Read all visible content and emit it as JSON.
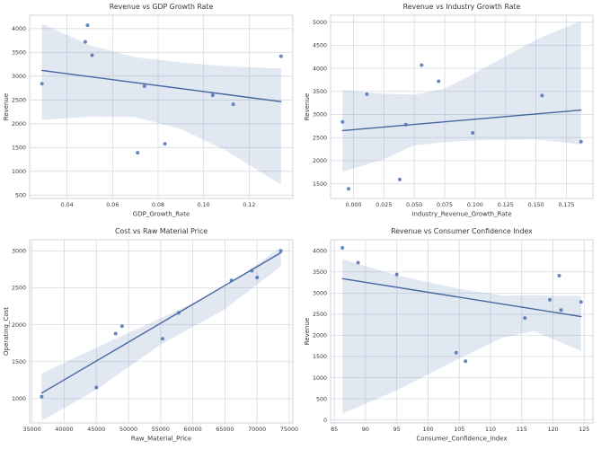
{
  "figure": {
    "background": "#ffffff"
  },
  "style": {
    "point_color": "#4c72b0",
    "point_radius": 2,
    "point_opacity": 0.85,
    "line_color": "#44679f",
    "line_width": 1.4,
    "band_color": "rgba(76,114,176,0.16)",
    "grid_color": "#d9dbe3",
    "spine_color": "#cbcfd8",
    "text_color": "#363636",
    "tick_font_size": 6.3,
    "label_font_size": 7,
    "title_font_size": 7.8
  },
  "chart_data": [
    {
      "type": "scatter",
      "title": "Revenue vs GDP Growth Rate",
      "xlabel": "GDP_Growth_Rate",
      "ylabel": "Revenue",
      "xlim": [
        0.0236,
        0.1392
      ],
      "ylim": [
        430,
        4280
      ],
      "xticks": [
        0.04,
        0.06,
        0.08,
        0.1,
        0.12
      ],
      "xtick_labels": [
        "0.04",
        "0.06",
        "0.08",
        "0.10",
        "0.12"
      ],
      "yticks": [
        500,
        1000,
        1500,
        2000,
        2500,
        3000,
        3500,
        4000
      ],
      "ytick_labels": [
        "500",
        "1000",
        "1500",
        "2000",
        "2500",
        "3000",
        "3500",
        "4000"
      ],
      "grid": true,
      "points": [
        [
          0.029,
          2840
        ],
        [
          0.048,
          3720
        ],
        [
          0.049,
          4070
        ],
        [
          0.051,
          3440
        ],
        [
          0.071,
          1390
        ],
        [
          0.074,
          2790
        ],
        [
          0.083,
          1580
        ],
        [
          0.104,
          2600
        ],
        [
          0.113,
          2410
        ],
        [
          0.134,
          3420
        ]
      ],
      "regression_line": {
        "x": [
          0.029,
          0.134
        ],
        "y": [
          3120,
          2465
        ]
      },
      "confidence_band": {
        "x": [
          0.029,
          0.05,
          0.07,
          0.09,
          0.11,
          0.134
        ],
        "upper": [
          4100,
          3650,
          3400,
          3290,
          3210,
          3160
        ],
        "lower": [
          2080,
          2150,
          2140,
          1890,
          1430,
          720
        ]
      }
    },
    {
      "type": "scatter",
      "title": "Revenue vs Industry Growth Rate",
      "xlabel": "Industry_Revenue_Growth_Rate",
      "ylabel": "Revenue",
      "xlim": [
        -0.0188,
        0.1968
      ],
      "ylim": [
        1180,
        5150
      ],
      "xticks": [
        0.0,
        0.025,
        0.05,
        0.075,
        0.1,
        0.125,
        0.15,
        0.175
      ],
      "xtick_labels": [
        "0.000",
        "0.025",
        "0.050",
        "0.075",
        "0.100",
        "0.125",
        "0.150",
        "0.175"
      ],
      "yticks": [
        1500,
        2000,
        2500,
        3000,
        3500,
        4000,
        4500,
        5000
      ],
      "ytick_labels": [
        "1500",
        "2000",
        "2500",
        "3000",
        "3500",
        "4000",
        "4500",
        "5000"
      ],
      "grid": true,
      "points": [
        [
          -0.009,
          2840
        ],
        [
          -0.004,
          1390
        ],
        [
          0.011,
          3440
        ],
        [
          0.038,
          1590
        ],
        [
          0.043,
          2780
        ],
        [
          0.056,
          4070
        ],
        [
          0.07,
          3720
        ],
        [
          0.098,
          2600
        ],
        [
          0.155,
          3410
        ],
        [
          0.187,
          2410
        ]
      ],
      "regression_line": {
        "x": [
          -0.009,
          0.187
        ],
        "y": [
          2650,
          3095
        ]
      },
      "confidence_band": {
        "x": [
          -0.009,
          0.025,
          0.05,
          0.075,
          0.1,
          0.15,
          0.187
        ],
        "upper": [
          3530,
          3450,
          3430,
          3560,
          3900,
          4620,
          5030
        ],
        "lower": [
          1760,
          2030,
          2330,
          2400,
          2440,
          2460,
          2350
        ]
      }
    },
    {
      "type": "scatter",
      "title": "Cost vs Raw Material Price",
      "xlabel": "Raw_Material_Price",
      "ylabel": "Operating_Cost",
      "xlim": [
        34640,
        75560
      ],
      "ylim": [
        670,
        3150
      ],
      "xticks": [
        35000,
        40000,
        45000,
        50000,
        55000,
        60000,
        65000,
        70000,
        75000
      ],
      "xtick_labels": [
        "35000",
        "40000",
        "45000",
        "50000",
        "55000",
        "60000",
        "65000",
        "70000",
        "75000"
      ],
      "yticks": [
        1000,
        1500,
        2000,
        2500,
        3000
      ],
      "ytick_labels": [
        "1000",
        "1500",
        "2000",
        "2500",
        "3000"
      ],
      "grid": true,
      "points": [
        [
          36500,
          1025
        ],
        [
          45000,
          1150
        ],
        [
          48000,
          1880
        ],
        [
          49000,
          1980
        ],
        [
          55300,
          1810
        ],
        [
          57800,
          2160
        ],
        [
          66000,
          2600
        ],
        [
          69200,
          2730
        ],
        [
          70000,
          2640
        ],
        [
          73700,
          3000
        ]
      ],
      "regression_line": {
        "x": [
          36500,
          73700
        ],
        "y": [
          1075,
          2975
        ]
      },
      "confidence_band": {
        "x": [
          36500,
          45000,
          55000,
          60000,
          65000,
          73700
        ],
        "upper": [
          1340,
          1690,
          2090,
          2290,
          2510,
          3050
        ],
        "lower": [
          700,
          1120,
          1730,
          1970,
          2210,
          2790
        ]
      }
    },
    {
      "type": "scatter",
      "title": "Revenue vs Consumer Confidence Index",
      "xlabel": "Consumer_Confidence_Index",
      "ylabel": "Revenue",
      "xlim": [
        84.4,
        126.4
      ],
      "ylim": [
        -70,
        4260
      ],
      "xticks": [
        85,
        90,
        95,
        100,
        105,
        110,
        115,
        120,
        125
      ],
      "xtick_labels": [
        "85",
        "90",
        "95",
        "100",
        "105",
        "110",
        "115",
        "120",
        "125"
      ],
      "yticks": [
        0,
        500,
        1000,
        1500,
        2000,
        2500,
        3000,
        3500,
        4000
      ],
      "ytick_labels": [
        "0",
        "500",
        "1000",
        "1500",
        "2000",
        "2500",
        "3000",
        "3500",
        "4000"
      ],
      "grid": true,
      "points": [
        [
          86.3,
          4070
        ],
        [
          88.8,
          3720
        ],
        [
          95.0,
          3440
        ],
        [
          104.5,
          1590
        ],
        [
          106.0,
          1390
        ],
        [
          115.5,
          2410
        ],
        [
          119.5,
          2840
        ],
        [
          121.0,
          3410
        ],
        [
          121.3,
          2600
        ],
        [
          124.5,
          2790
        ]
      ],
      "regression_line": {
        "x": [
          86.3,
          124.5
        ],
        "y": [
          3340,
          2445
        ]
      },
      "confidence_band": {
        "x": [
          86.3,
          95,
          105,
          112,
          117,
          124.5
        ],
        "upper": [
          3800,
          3420,
          3100,
          2940,
          2950,
          2930
        ],
        "lower": [
          150,
          700,
          1450,
          1950,
          2100,
          1630
        ]
      }
    }
  ]
}
